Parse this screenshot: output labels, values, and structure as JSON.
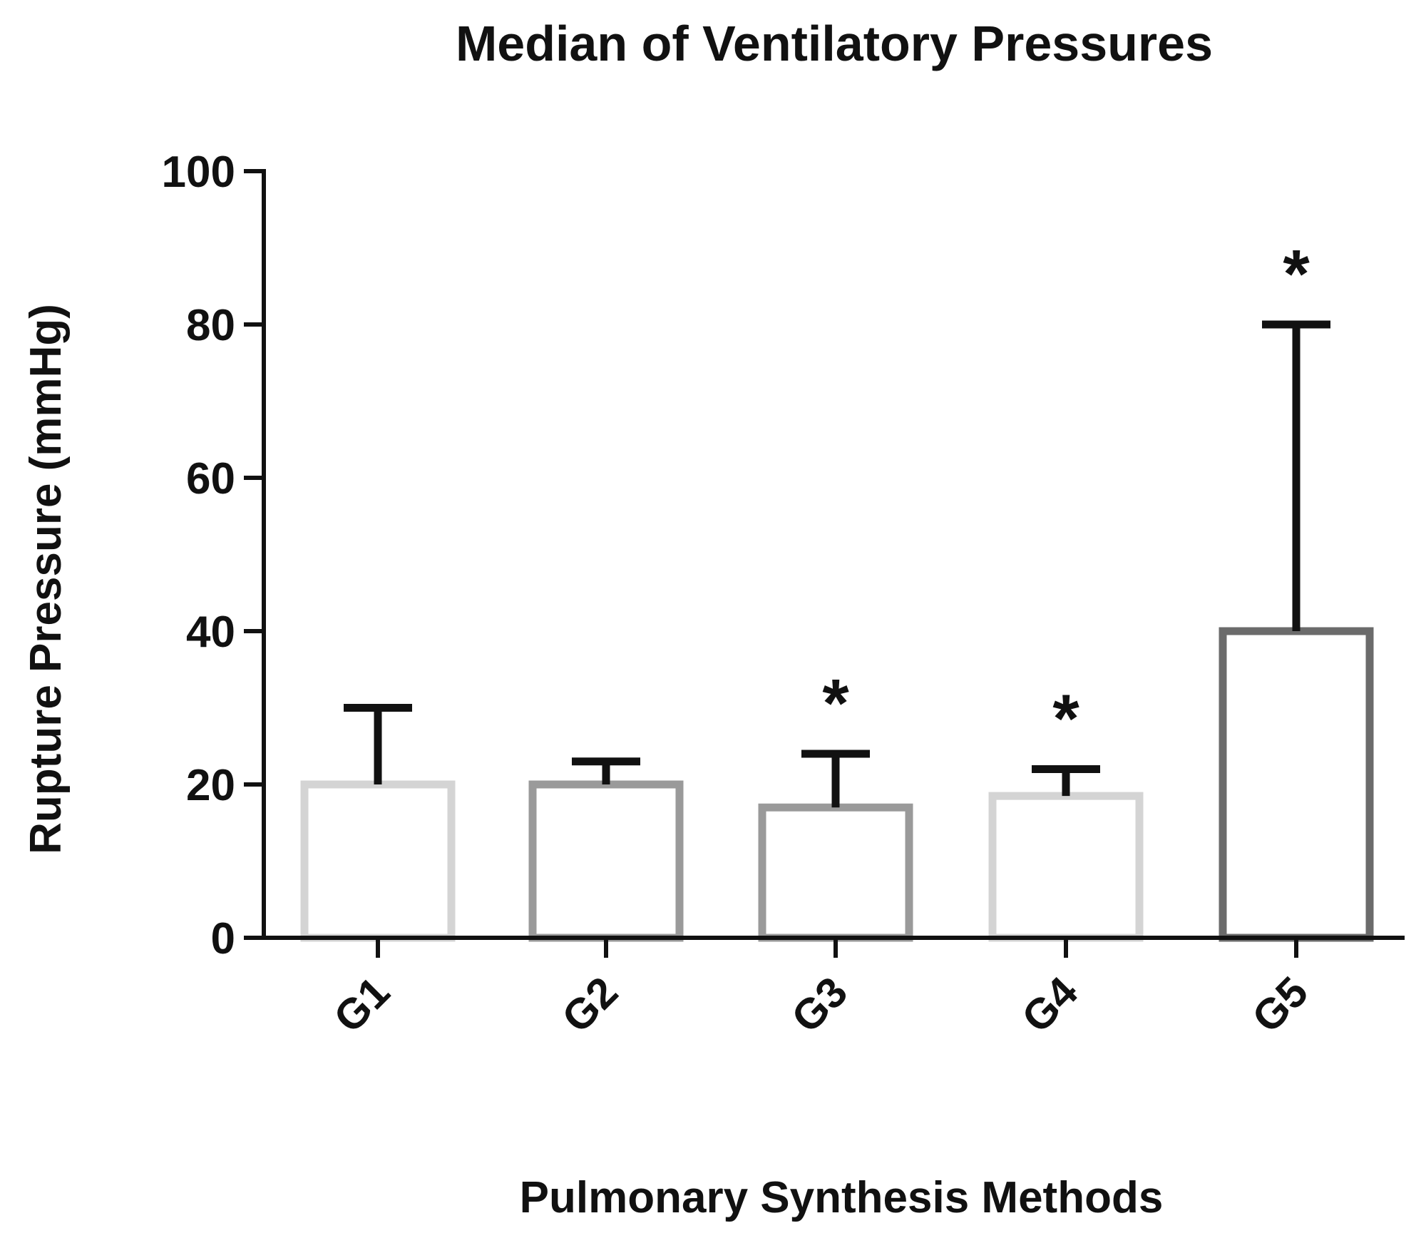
{
  "chart_data": {
    "type": "bar",
    "title": "Median of Ventilatory Pressures",
    "xlabel": "Pulmonary Synthesis Methods",
    "ylabel": "Rupture Pressure (mmHg)",
    "ylim": [
      0,
      100
    ],
    "yticks": [
      0,
      20,
      40,
      60,
      80,
      100
    ],
    "ytick_labels": [
      "0",
      "20",
      "40",
      "60",
      "80",
      "100"
    ],
    "grid": false,
    "categories": [
      "G1",
      "G2",
      "G3",
      "G4",
      "G5"
    ],
    "values": [
      20,
      20,
      17,
      18.5,
      40
    ],
    "error_upper": [
      30,
      23,
      24,
      22,
      80
    ],
    "significance": [
      "",
      "",
      "*",
      "*",
      "*"
    ],
    "bar_edge_colors": [
      "#d4d4d4",
      "#9a9a9a",
      "#9a9a9a",
      "#d4d4d4",
      "#6b6b6b"
    ]
  }
}
